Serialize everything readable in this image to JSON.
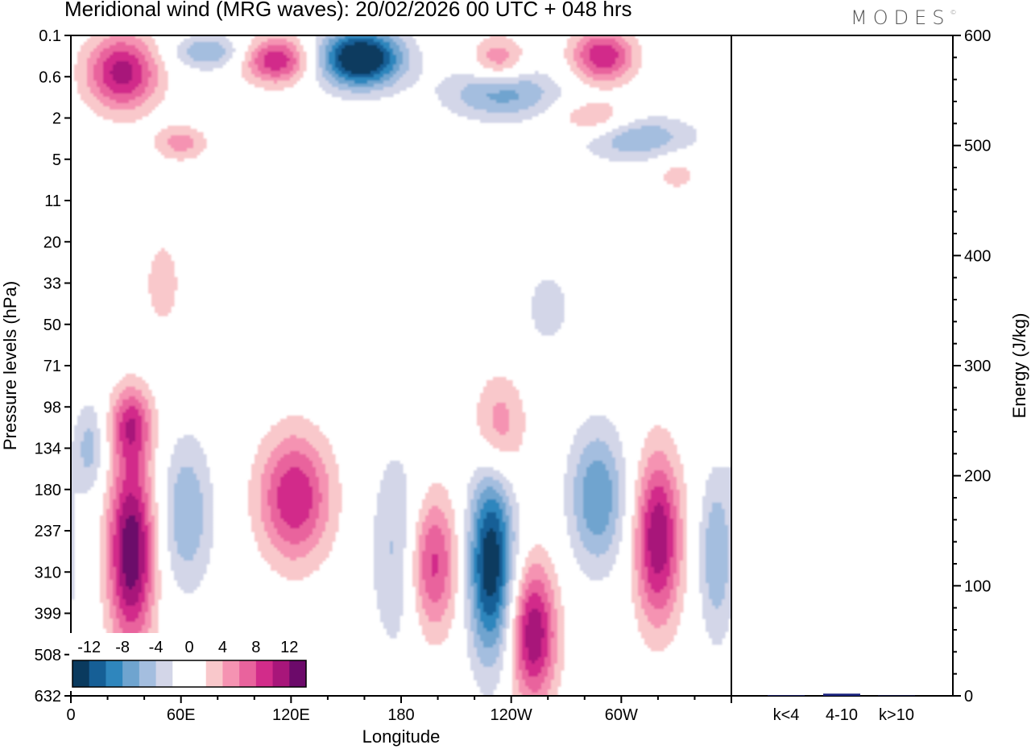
{
  "title": "Meridional wind (MRG waves):  20/02/2026  00 UTC  + 048 hrs",
  "logo": "MODES",
  "chart_data": [
    {
      "type": "heatmap",
      "title": "Meridional wind (MRG waves):  20/02/2026  00 UTC  + 048 hrs",
      "xlabel": "Longitude",
      "ylabel": "Pressure levels (hPa)",
      "x_tick_labels": [
        "0",
        "60E",
        "120E",
        "180",
        "120W",
        "60W"
      ],
      "x_tick_positions_deg": [
        0,
        60,
        120,
        180,
        240,
        300
      ],
      "xlim_deg": [
        0,
        360
      ],
      "y_levels": [
        "0.1",
        "0.6",
        "2",
        "5",
        "11",
        "20",
        "33",
        "50",
        "71",
        "98",
        "134",
        "180",
        "237",
        "310",
        "399",
        "508",
        "632"
      ],
      "colorbar": {
        "levels": [
          -14,
          -12,
          -10,
          -8,
          -6,
          -4,
          -2,
          0,
          2,
          4,
          6,
          8,
          10,
          12,
          14
        ],
        "tick_labels": [
          "-12",
          "-8",
          "-4",
          "0",
          "4",
          "8",
          "12"
        ],
        "colors": [
          "#0a3a5e",
          "#165f96",
          "#2f86bd",
          "#6fa4cf",
          "#a4bedf",
          "#d3d6e8",
          "#ffffff",
          "#ffffff",
          "#f9c8cb",
          "#f593b2",
          "#e9639d",
          "#d22c8a",
          "#a8167a",
          "#6c0a6a"
        ]
      },
      "features": [
        {
          "name": "positive-tropo-40E",
          "lon": 33,
          "level": 12.5,
          "peak": 14,
          "lon_width": 9,
          "level_height": 3.3
        },
        {
          "name": "positive-upper-30E",
          "lon": 33,
          "level": 9.4,
          "peak": 8,
          "lon_width": 8,
          "level_height": 1.3
        },
        {
          "name": "negative-tropo-60E",
          "lon": 63,
          "level": 11.6,
          "peak": -6,
          "lon_width": 10,
          "level_height": 2.6
        },
        {
          "name": "negative-upper-10E",
          "lon": 10,
          "level": 10,
          "peak": -5,
          "lon_width": 6,
          "level_height": 1.6
        },
        {
          "name": "positive-tropo-120E",
          "lon": 122,
          "level": 11.2,
          "peak": 10,
          "lon_width": 14,
          "level_height": 2.2
        },
        {
          "name": "negative-tropo-180",
          "lon": 178,
          "level": 12.5,
          "peak": -5,
          "lon_width": 10,
          "level_height": 3.4
        },
        {
          "name": "positive-tropo-195",
          "lon": 197,
          "level": 12.8,
          "peak": 9,
          "lon_width": 10,
          "level_height": 2.4
        },
        {
          "name": "negative-tropo-115W",
          "lon": 229,
          "level": 12.8,
          "peak": -14,
          "lon_width": 9,
          "level_height": 3.3
        },
        {
          "name": "positive-tropo-135W",
          "lon": 252,
          "level": 14.5,
          "peak": 12,
          "lon_width": 9,
          "level_height": 2.4
        },
        {
          "name": "positive-upper-120W",
          "lon": 233,
          "level": 9.5,
          "peak": 6,
          "lon_width": 10,
          "level_height": 1.8
        },
        {
          "name": "negative-tropo-70W",
          "lon": 287,
          "level": 11.2,
          "peak": -8,
          "lon_width": 11,
          "level_height": 2.4
        },
        {
          "name": "positive-tropo-55W",
          "lon": 320,
          "level": 12.2,
          "peak": 12,
          "lon_width": 9,
          "level_height": 2.9
        },
        {
          "name": "negative-tropo-20W",
          "lon": 352,
          "level": 12.6,
          "peak": -6,
          "lon_width": 7,
          "level_height": 2.9
        },
        {
          "name": "negative-strat-165E",
          "lon": 158,
          "level": 0.55,
          "peak": -16,
          "lon_width": 16,
          "level_height": 1.0
        },
        {
          "name": "negative-strat-150W",
          "lon": 235,
          "level": 1.4,
          "peak": -7,
          "lon_width": 22,
          "level_height": 0.9
        },
        {
          "name": "negative-strat-100W",
          "lon": 310,
          "level": 2.5,
          "peak": -6,
          "lon_width": 22,
          "level_height": 0.8
        },
        {
          "name": "positive-strat-30E",
          "lon": 28,
          "level": 0.9,
          "peak": 11,
          "lon_width": 14,
          "level_height": 1.3
        },
        {
          "name": "positive-strat-115E",
          "lon": 112,
          "level": 0.6,
          "peak": 10,
          "lon_width": 13,
          "level_height": 0.8
        },
        {
          "name": "positive-strat-60W",
          "lon": 290,
          "level": 0.5,
          "peak": 10,
          "lon_width": 12,
          "level_height": 0.9
        },
        {
          "name": "positive-strat-125W",
          "lon": 233,
          "level": 0.6,
          "peak": 6,
          "lon_width": 10,
          "level_height": 0.8
        },
        {
          "name": "negative-strat-60E",
          "lon": 75,
          "level": 0.4,
          "peak": -6,
          "lon_width": 14,
          "level_height": 0.6
        },
        {
          "name": "positive-strat-40E-low",
          "lon": 60,
          "level": 2.6,
          "peak": 5,
          "lon_width": 10,
          "level_height": 0.6
        },
        {
          "name": "positive-strat-100W",
          "lon": 285,
          "level": 2.0,
          "peak": 5,
          "lon_width": 14,
          "level_height": 0.6
        },
        {
          "name": "positive-midstrat-45E",
          "lon": 50,
          "level": 6.0,
          "peak": 3,
          "lon_width": 8,
          "level_height": 1.8
        },
        {
          "name": "negative-midstrat-120W",
          "lon": 260,
          "level": 6.6,
          "peak": -3,
          "lon_width": 10,
          "level_height": 1.5
        },
        {
          "name": "positive-midstrat-50W",
          "lon": 330,
          "level": 3.3,
          "peak": 3,
          "lon_width": 10,
          "level_height": 0.8
        }
      ]
    },
    {
      "type": "bar",
      "ylabel": "Energy (J/kg)",
      "categories": [
        "k<4",
        "4-10",
        "k>10"
      ],
      "values": [
        0.5,
        2,
        0.3
      ],
      "ylim": [
        0,
        600
      ],
      "y_tick_labels": [
        "0",
        "100",
        "200",
        "300",
        "400",
        "500",
        "600"
      ],
      "bar_color": "#1a237e"
    }
  ]
}
